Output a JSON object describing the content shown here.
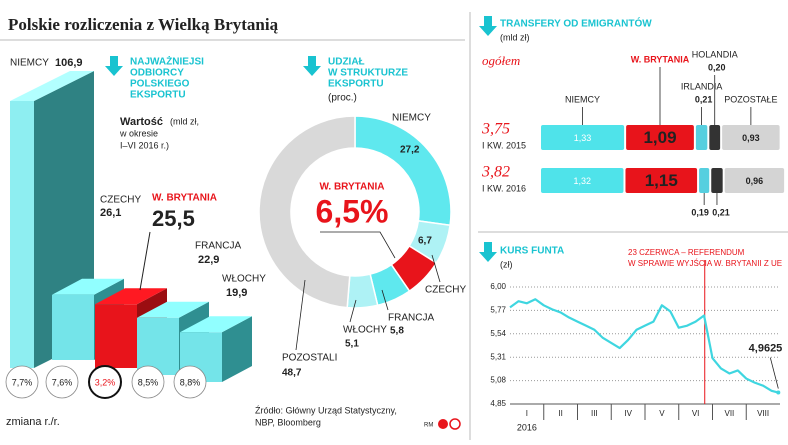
{
  "title": "Polskie rozliczenia z Wielką Brytanią",
  "source": [
    "Źródło: Główny Urząd Statystyczny,",
    "NBP, Bloomberg"
  ],
  "credit": "RM",
  "chart_data": [
    {
      "type": "bar3d",
      "title": [
        "NAJWAŻNIEJSI",
        "ODBIORCY",
        "POLSKIEGO",
        "EKSPORTU"
      ],
      "subtitle": "Wartość",
      "unit": [
        "(mld zł,",
        "w okresie",
        "I–VI 2016 r.)"
      ],
      "categories": [
        "NIEMCY",
        "CZECHY",
        "W. BRYTANIA",
        "FRANCJA",
        "WŁOCHY"
      ],
      "values": [
        106.9,
        26.1,
        25.5,
        22.9,
        19.9
      ],
      "value_labels": [
        "106,9",
        "26,1",
        "25,5",
        "22,9",
        "19,9"
      ],
      "colors": [
        "#8eeef1",
        "#74e4e9",
        "#e8141b",
        "#74e4e9",
        "#74e4e9"
      ],
      "side_colors": [
        "#2f8283",
        "#2f8f91",
        "#9b0d11",
        "#2f8f91",
        "#2f8f91"
      ],
      "change_title": "zmiana r./r.",
      "change_values": [
        7.7,
        7.6,
        3.2,
        8.5,
        8.8
      ],
      "change_labels": [
        "7,7%",
        "7,6%",
        "3,2%",
        "8,5%",
        "8,8%"
      ]
    },
    {
      "type": "pie",
      "title": [
        "UDZIAŁ",
        "W STRUKTURZE",
        "EKSPORTU"
      ],
      "subtitle": "(proc.)",
      "categories": [
        "NIEMCY",
        "CZECHY",
        "W. BRYTANIA",
        "FRANCJA",
        "WŁOCHY",
        "POZOSTALI"
      ],
      "values": [
        27.2,
        6.7,
        6.5,
        5.8,
        5.1,
        48.7
      ],
      "value_labels": [
        "27,2",
        "6,7",
        "6,5%",
        "5,8",
        "5,1",
        "48,7"
      ],
      "colors": [
        "#5fe8ee",
        "#aef2f5",
        "#e8141b",
        "#5fe8ee",
        "#aef2f5",
        "#d9d9d9"
      ]
    },
    {
      "type": "stacked-hbar",
      "title": "TRANSFERY OD EMIGRANTÓW",
      "subtitle": "(mld zł)",
      "total_title": "ogółem",
      "categories": [
        "I KW. 2015",
        "I KW. 2016"
      ],
      "totals": [
        3.75,
        3.82
      ],
      "total_labels": [
        "3,75",
        "3,82"
      ],
      "series": [
        {
          "name": "NIEMCY",
          "color": "#4fe3ea",
          "values": [
            1.33,
            1.32
          ],
          "value_labels": [
            "1,33",
            "1,32"
          ]
        },
        {
          "name": "W. BRYTANIA",
          "color": "#e8141b",
          "values": [
            1.09,
            1.15
          ],
          "value_labels": [
            "1,09",
            "1,15"
          ]
        },
        {
          "name": "IRLANDIA",
          "color": "#56cfdf",
          "values": [
            0.21,
            0.19
          ],
          "value_labels": [
            "0,21",
            "0,19"
          ]
        },
        {
          "name": "HOLANDIA",
          "color": "#333333",
          "values": [
            0.2,
            0.21
          ],
          "value_labels": [
            "0,20",
            "0,21"
          ]
        },
        {
          "name": "POZOSTAŁE",
          "color": "#d4d4d4",
          "values": [
            0.93,
            0.96
          ],
          "value_labels": [
            "0,93",
            "0,96"
          ]
        }
      ]
    },
    {
      "type": "line",
      "title": "KURS FUNTA",
      "subtitle": "(zł)",
      "x": [
        1.0,
        1.25,
        1.5,
        1.75,
        2.0,
        2.25,
        2.5,
        2.75,
        3.0,
        3.25,
        3.5,
        3.75,
        4.0,
        4.25,
        4.5,
        4.75,
        5.0,
        5.25,
        5.5,
        5.75,
        6.0,
        6.25,
        6.5,
        6.75,
        7.0,
        7.25,
        7.5,
        7.75,
        8.0,
        8.25,
        8.5,
        8.75,
        8.95
      ],
      "values": [
        5.8,
        5.86,
        5.84,
        5.88,
        5.82,
        5.78,
        5.75,
        5.7,
        5.66,
        5.62,
        5.58,
        5.5,
        5.45,
        5.4,
        5.48,
        5.58,
        5.62,
        5.66,
        5.82,
        5.76,
        5.6,
        5.62,
        5.66,
        5.72,
        5.3,
        5.2,
        5.15,
        5.18,
        5.1,
        5.06,
        5.03,
        4.98,
        4.9625
      ],
      "value_labels": [
        null,
        null,
        null,
        null,
        null,
        null,
        null,
        null,
        null,
        null,
        null,
        null,
        null,
        null,
        null,
        null,
        null,
        null,
        null,
        null,
        null,
        null,
        null,
        null,
        null,
        null,
        null,
        null,
        null,
        null,
        null,
        null,
        "4,9625"
      ],
      "color": "#3fd6e0",
      "xlim": [
        1,
        9
      ],
      "xticks": [
        {
          "value": 1.5,
          "label": "I"
        },
        {
          "value": 2.5,
          "label": "II"
        },
        {
          "value": 3.5,
          "label": "III"
        },
        {
          "value": 4.5,
          "label": "IV"
        },
        {
          "value": 5.5,
          "label": "V"
        },
        {
          "value": 6.5,
          "label": "VI"
        },
        {
          "value": 7.5,
          "label": "VII"
        },
        {
          "value": 8.5,
          "label": "VIII"
        }
      ],
      "x_year": "2016",
      "ylim": [
        4.85,
        6.0
      ],
      "yticks": [
        {
          "value": 4.85,
          "label": "4,85"
        },
        {
          "value": 5.08,
          "label": "5,08"
        },
        {
          "value": 5.31,
          "label": "5,31"
        },
        {
          "value": 5.54,
          "label": "5,54"
        },
        {
          "value": 5.77,
          "label": "5,77"
        },
        {
          "value": 6.0,
          "label": "6,00"
        }
      ],
      "grid": true,
      "annotation": {
        "x": 6.77,
        "color": "#e8141b",
        "lines": [
          "23 CZERWCA – REFERENDUM",
          "W SPRAWIE WYJŚCIA W. BRYTANII Z UE"
        ]
      }
    }
  ]
}
